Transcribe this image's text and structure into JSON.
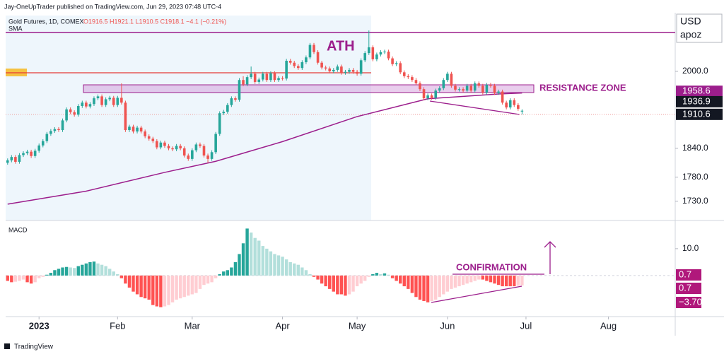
{
  "header": {
    "published": "Jay-OneUpTrader published on TradingView.com, Jun 29, 2023 07:48 UTC-4",
    "brand": "TradingView"
  },
  "chart_data": [
    {
      "type": "candlestick",
      "title": "Gold Futures, 1D, COMEX",
      "ohlc_text": "O1916.5 H1921.1 L1910.5 C1918.1 −4.1 (−0.21%)",
      "currency": "USD",
      "unit": "apoz",
      "up_color": "#26a69a",
      "down_color": "#ef5350",
      "candles": [
        [
          1810,
          1819,
          1806,
          1815
        ],
        [
          1815,
          1826,
          1811,
          1822
        ],
        [
          1822,
          1826,
          1808,
          1812
        ],
        [
          1812,
          1830,
          1808,
          1826
        ],
        [
          1826,
          1834,
          1822,
          1830
        ],
        [
          1830,
          1837,
          1826,
          1833
        ],
        [
          1833,
          1837,
          1820,
          1824
        ],
        [
          1824,
          1839,
          1820,
          1835
        ],
        [
          1835,
          1850,
          1831,
          1846
        ],
        [
          1846,
          1859,
          1842,
          1855
        ],
        [
          1855,
          1874,
          1851,
          1870
        ],
        [
          1870,
          1880,
          1866,
          1876
        ],
        [
          1876,
          1884,
          1872,
          1880
        ],
        [
          1880,
          1884,
          1874,
          1878
        ],
        [
          1878,
          1902,
          1874,
          1898
        ],
        [
          1898,
          1925,
          1894,
          1921
        ],
        [
          1921,
          1925,
          1911,
          1915
        ],
        [
          1915,
          1919,
          1906,
          1910
        ],
        [
          1910,
          1932,
          1906,
          1928
        ],
        [
          1928,
          1939,
          1924,
          1935
        ],
        [
          1935,
          1939,
          1923,
          1927
        ],
        [
          1927,
          1936,
          1923,
          1932
        ],
        [
          1932,
          1948,
          1928,
          1944
        ],
        [
          1944,
          1952,
          1940,
          1948
        ],
        [
          1948,
          1952,
          1926,
          1930
        ],
        [
          1930,
          1946,
          1926,
          1942
        ],
        [
          1942,
          1949,
          1938,
          1945
        ],
        [
          1945,
          1949,
          1926,
          1930
        ],
        [
          1930,
          1949,
          1926,
          1945
        ],
        [
          1945,
          1975,
          1931,
          1935
        ],
        [
          1935,
          1939,
          1874,
          1878
        ],
        [
          1878,
          1889,
          1874,
          1885
        ],
        [
          1885,
          1889,
          1871,
          1875
        ],
        [
          1875,
          1887,
          1871,
          1883
        ],
        [
          1883,
          1887,
          1871,
          1875
        ],
        [
          1875,
          1879,
          1861,
          1865
        ],
        [
          1865,
          1869,
          1856,
          1860
        ],
        [
          1860,
          1864,
          1851,
          1855
        ],
        [
          1855,
          1859,
          1838,
          1842
        ],
        [
          1842,
          1856,
          1838,
          1852
        ],
        [
          1852,
          1856,
          1841,
          1845
        ],
        [
          1845,
          1849,
          1836,
          1840
        ],
        [
          1840,
          1844,
          1834,
          1838
        ],
        [
          1838,
          1849,
          1834,
          1845
        ],
        [
          1845,
          1849,
          1836,
          1840
        ],
        [
          1840,
          1844,
          1821,
          1825
        ],
        [
          1825,
          1829,
          1814,
          1818
        ],
        [
          1818,
          1840,
          1814,
          1836
        ],
        [
          1836,
          1852,
          1832,
          1848
        ],
        [
          1848,
          1852,
          1841,
          1845
        ],
        [
          1845,
          1849,
          1821,
          1825
        ],
        [
          1825,
          1829,
          1810,
          1818
        ],
        [
          1818,
          1836,
          1814,
          1832
        ],
        [
          1832,
          1874,
          1828,
          1870
        ],
        [
          1870,
          1917,
          1866,
          1913
        ],
        [
          1913,
          1920,
          1909,
          1916
        ],
        [
          1916,
          1934,
          1912,
          1930
        ],
        [
          1930,
          1948,
          1926,
          1944
        ],
        [
          1944,
          1948,
          1937,
          1941
        ],
        [
          1941,
          1986,
          1937,
          1982
        ],
        [
          1982,
          1990,
          1969,
          1973
        ],
        [
          1973,
          1992,
          1969,
          1988
        ],
        [
          1988,
          2010,
          1984,
          1995
        ],
        [
          1995,
          1999,
          1974,
          1978
        ],
        [
          1978,
          1987,
          1974,
          1983
        ],
        [
          1983,
          1999,
          1979,
          1995
        ],
        [
          1995,
          1999,
          1978,
          1982
        ],
        [
          1982,
          2000,
          1978,
          1996
        ],
        [
          1996,
          2000,
          1978,
          1982
        ],
        [
          1982,
          1990,
          1978,
          1986
        ],
        [
          1986,
          1990,
          1981,
          1985
        ],
        [
          1985,
          2026,
          1981,
          2022
        ],
        [
          2022,
          2026,
          2014,
          2018
        ],
        [
          2018,
          2022,
          2007,
          2011
        ],
        [
          2011,
          2015,
          2003,
          2007
        ],
        [
          2007,
          2023,
          2003,
          2019
        ],
        [
          2019,
          2033,
          2015,
          2029
        ],
        [
          2029,
          2059,
          2025,
          2055
        ],
        [
          2055,
          2059,
          2036,
          2040
        ],
        [
          2040,
          2044,
          2014,
          2018
        ],
        [
          2018,
          2022,
          2004,
          2008
        ],
        [
          2008,
          2012,
          2002,
          2006
        ],
        [
          2006,
          2010,
          1996,
          2000
        ],
        [
          2000,
          2007,
          1996,
          2003
        ],
        [
          2003,
          2014,
          1999,
          2010
        ],
        [
          2010,
          2014,
          1993,
          1997
        ],
        [
          1997,
          2003,
          1993,
          1999
        ],
        [
          1999,
          2007,
          1995,
          2003
        ],
        [
          2003,
          2007,
          1995,
          1999
        ],
        [
          1999,
          2003,
          1991,
          1995
        ],
        [
          1995,
          2027,
          1991,
          2023
        ],
        [
          2023,
          2042,
          2019,
          2038
        ],
        [
          2038,
          2085,
          2034,
          2050
        ],
        [
          2050,
          2054,
          2021,
          2025
        ],
        [
          2025,
          2039,
          2021,
          2035
        ],
        [
          2035,
          2044,
          2031,
          2040
        ],
        [
          2040,
          2045,
          2036,
          2041
        ],
        [
          2041,
          2045,
          2023,
          2027
        ],
        [
          2027,
          2031,
          2011,
          2015
        ],
        [
          2015,
          2021,
          2011,
          2017
        ],
        [
          2017,
          2021,
          1994,
          1998
        ],
        [
          1998,
          2002,
          1986,
          1990
        ],
        [
          1990,
          1994,
          1984,
          1988
        ],
        [
          1988,
          1992,
          1978,
          1982
        ],
        [
          1982,
          1986,
          1971,
          1975
        ],
        [
          1975,
          1979,
          1959,
          1963
        ],
        [
          1963,
          1967,
          1940,
          1944
        ],
        [
          1944,
          1954,
          1940,
          1950
        ],
        [
          1950,
          1954,
          1941,
          1945
        ],
        [
          1945,
          1964,
          1941,
          1960
        ],
        [
          1960,
          1969,
          1956,
          1965
        ],
        [
          1965,
          1986,
          1961,
          1982
        ],
        [
          1982,
          1999,
          1978,
          1995
        ],
        [
          1995,
          1999,
          1966,
          1970
        ],
        [
          1970,
          1974,
          1958,
          1962
        ],
        [
          1962,
          1967,
          1958,
          1963
        ],
        [
          1963,
          1967,
          1956,
          1960
        ],
        [
          1960,
          1974,
          1956,
          1970
        ],
        [
          1970,
          1974,
          1956,
          1960
        ],
        [
          1960,
          1979,
          1956,
          1975
        ],
        [
          1975,
          1979,
          1966,
          1970
        ],
        [
          1970,
          1974,
          1952,
          1956
        ],
        [
          1956,
          1976,
          1952,
          1972
        ],
        [
          1972,
          1976,
          1966,
          1970
        ],
        [
          1970,
          1974,
          1951,
          1955
        ],
        [
          1955,
          1962,
          1951,
          1958
        ],
        [
          1958,
          1962,
          1931,
          1935
        ],
        [
          1935,
          1939,
          1921,
          1925
        ],
        [
          1925,
          1944,
          1921,
          1940
        ],
        [
          1940,
          1944,
          1926,
          1930
        ],
        [
          1930,
          1934,
          1918,
          1922.2
        ],
        [
          1916.5,
          1921.1,
          1910.5,
          1918.1
        ]
      ],
      "sma": {
        "name": "SMA",
        "color": "#9c1e8c",
        "x": [
          0,
          20,
          40,
          53,
          70,
          89,
          107,
          125,
          131
        ],
        "values": [
          1724,
          1751,
          1790,
          1813,
          1854,
          1906,
          1943,
          1953,
          1955
        ]
      },
      "xlim": [
        -0.5,
        170
      ],
      "ylim": [
        1690,
        2116
      ],
      "yticks": [
        {
          "value": 2000,
          "label": "2000.0"
        },
        {
          "value": 1840,
          "label": "1840.0"
        },
        {
          "value": 1780,
          "label": "1780.0"
        },
        {
          "value": 1730,
          "label": "1730.0"
        }
      ],
      "xticks": [
        {
          "value": 8,
          "label": "2023"
        },
        {
          "value": 28,
          "label": "Feb"
        },
        {
          "value": 47,
          "label": "Mar"
        },
        {
          "value": 70,
          "label": "Apr"
        },
        {
          "value": 89,
          "label": "May"
        },
        {
          "value": 112,
          "label": "Jun"
        },
        {
          "value": 132,
          "label": "Jul"
        },
        {
          "value": 153,
          "label": "Aug"
        }
      ],
      "price_labels": [
        1958.6,
        1936.9,
        1910.6
      ],
      "price_label_colors": [
        "#9c1e8c",
        "#131722",
        "#131722"
      ],
      "levels": {
        "ath": 2081,
        "support": 1997,
        "resistance_zone": [
          1956,
          1972
        ]
      },
      "annotations": {
        "ath": "ATH",
        "resistance": "RESISTANCE ZONE"
      }
    },
    {
      "type": "histogram",
      "title": "MACD",
      "values": [
        -2,
        -2.5,
        -2.3,
        -2,
        -1.5,
        -2.5,
        -3,
        -2.5,
        -1,
        -0.5,
        0.3,
        1,
        2,
        2.5,
        3,
        3.2,
        3,
        2.8,
        3.5,
        4,
        4.5,
        5,
        5.2,
        4.5,
        4,
        3.5,
        2.5,
        1.5,
        0.5,
        -1,
        -3,
        -4.5,
        -6,
        -7,
        -8,
        -8.5,
        -9,
        -11,
        -11.5,
        -11.8,
        -11.5,
        -11,
        -10,
        -9,
        -8.5,
        -8,
        -7.5,
        -7,
        -6.5,
        -5,
        -3.5,
        -3,
        -2.5,
        -1,
        0.5,
        1.5,
        2,
        3,
        5,
        8,
        12,
        17.5,
        16,
        14,
        13,
        11,
        10,
        9,
        8,
        7.5,
        7,
        6,
        5,
        4.5,
        4,
        3,
        2,
        0.5,
        -0.5,
        -1.5,
        -3,
        -4,
        -5,
        -6,
        -7,
        -7,
        -7.5,
        -7,
        -6,
        -4,
        -3,
        -2,
        -0.5,
        0.5,
        1,
        0.5,
        0.8,
        0.3,
        -1,
        -2,
        -3,
        -4,
        -5,
        -6.5,
        -8,
        -9,
        -9.5,
        -10,
        -9.5,
        -9,
        -8,
        -7,
        -6,
        -5,
        -4.5,
        -4,
        -3.5,
        -3,
        -2.5,
        -2,
        -1.5,
        -1.5,
        -2,
        -2.5,
        -3,
        -3.5,
        -4,
        -4,
        -4,
        -4,
        -3.8,
        -3.7
      ],
      "colors": {
        "up_strong": "#26a69a",
        "up_weak": "#b2dfdb",
        "down_strong": "#ff5252",
        "down_weak": "#ffcdd2"
      },
      "ylim": [
        -15.3,
        20.5
      ],
      "yticks": [
        {
          "value": 10,
          "label": "10.0"
        }
      ],
      "side_labels": [
        "0.7",
        "0.7",
        "−3.70"
      ],
      "annotation": "CONFIRMATION"
    }
  ]
}
